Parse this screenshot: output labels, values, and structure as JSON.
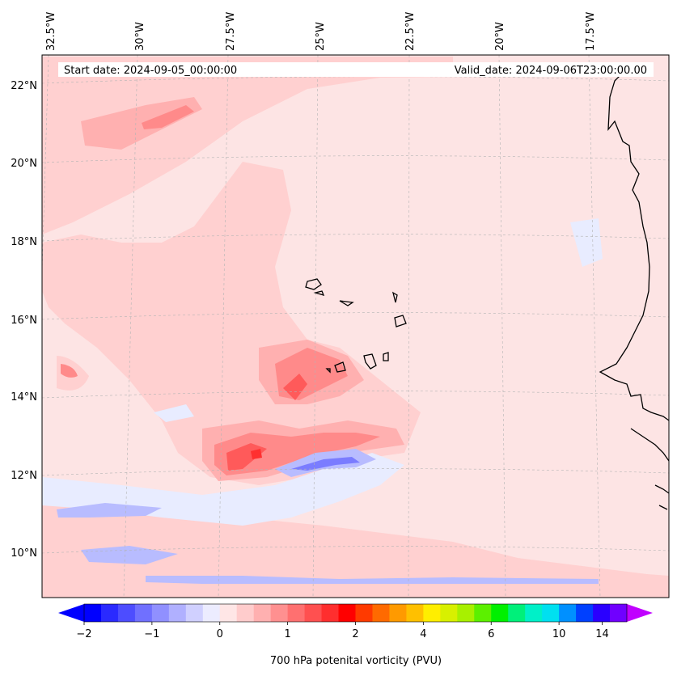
{
  "map": {
    "start_label": "Start date: 2024-09-05_00:00:00",
    "valid_label": "Valid_date: 2024-09-06T23:00:00.00",
    "lon_labels": [
      "32.5°W",
      "30°W",
      "27.5°W",
      "25°W",
      "22.5°W",
      "20°W",
      "17.5°W"
    ],
    "lat_labels": [
      "22°N",
      "20°N",
      "18°N",
      "16°N",
      "14°N",
      "12°N",
      "10°N"
    ],
    "colors": {
      "background": "#fde4e4",
      "light_pink": "#ffd0d0",
      "pink": "#ffb0b0",
      "salmon": "#ff8a8a",
      "red": "#ff5a5a",
      "deep_red": "#ff3030",
      "light_blue": "#e8ecff",
      "blue": "#b8bcff",
      "mid_blue": "#7a7cff",
      "coast": "#000000"
    }
  },
  "colorbar": {
    "label": "700 hPa potenital vorticity (PVU)",
    "tick_labels": [
      "−2",
      "−1",
      "0",
      "1",
      "2",
      "4",
      "6",
      "10",
      "14"
    ],
    "colors": [
      "#0000ff",
      "#2a2aff",
      "#4d4dff",
      "#7070ff",
      "#9090ff",
      "#b0b0ff",
      "#d0d0ff",
      "#ececff",
      "#ffe6e6",
      "#ffcccc",
      "#ffb0b0",
      "#ff9090",
      "#ff7070",
      "#ff5050",
      "#ff2e2e",
      "#ff0000",
      "#ff3a00",
      "#ff6a00",
      "#ff9a00",
      "#ffc000",
      "#ffee00",
      "#d8f000",
      "#a8f000",
      "#5cf000",
      "#00f000",
      "#00f07a",
      "#00f0c8",
      "#00e0f0",
      "#0090ff",
      "#0040ff",
      "#2a00ff",
      "#7000ff"
    ],
    "under_color": "#0000ff",
    "over_color": "#c000ff"
  }
}
